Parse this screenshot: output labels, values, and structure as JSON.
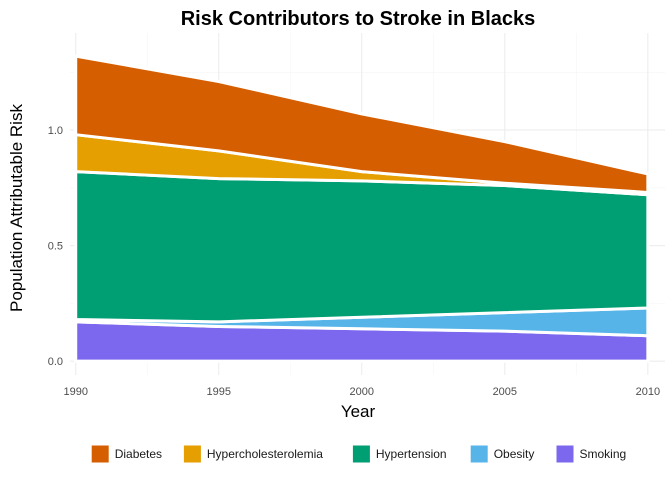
{
  "chart_data": {
    "type": "area",
    "title": "Risk Contributors to Stroke in Blacks",
    "xlabel": "Year",
    "ylabel": "Population Attributable Risk",
    "x": [
      1990,
      1995,
      2000,
      2005,
      2010
    ],
    "xlim": [
      1989.8,
      2010.6
    ],
    "ylim": [
      -0.06,
      1.42
    ],
    "xticks": [
      "1990",
      "1995",
      "2000",
      "2005",
      "2010"
    ],
    "yticks": [
      "0.0",
      "0.5",
      "1.0"
    ],
    "grid": true,
    "legend_position": "bottom",
    "series": [
      {
        "name": "Diabetes",
        "color": "#D55E00",
        "values": [
          0.34,
          0.3,
          0.25,
          0.18,
          0.08
        ]
      },
      {
        "name": "Hypercholesterolemia",
        "color": "#E69F00",
        "values": [
          0.16,
          0.12,
          0.04,
          0.01,
          0.01
        ]
      },
      {
        "name": "Hypertension",
        "color": "#009E73",
        "values": [
          0.64,
          0.62,
          0.59,
          0.55,
          0.49
        ]
      },
      {
        "name": "Obesity",
        "color": "#56B4E9",
        "values": [
          0.01,
          0.02,
          0.05,
          0.08,
          0.12
        ]
      },
      {
        "name": "Smoking",
        "color": "#7B68EE",
        "values": [
          0.17,
          0.15,
          0.14,
          0.13,
          0.11
        ]
      }
    ]
  }
}
